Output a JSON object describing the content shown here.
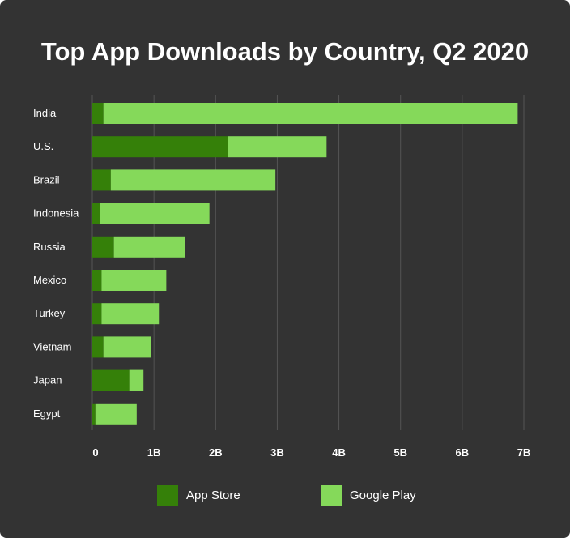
{
  "colors": {
    "background": "#333333",
    "grid": "#555555",
    "text": "#ffffff",
    "app_store": "#358009",
    "google_play": "#85d95a"
  },
  "chart_data": {
    "type": "bar",
    "orientation": "horizontal",
    "stacked": true,
    "title": "Top App Downloads by Country, Q2 2020",
    "xlabel": "",
    "ylabel": "",
    "categories": [
      "India",
      "U.S.",
      "Brazil",
      "Indonesia",
      "Russia",
      "Mexico",
      "Turkey",
      "Vietnam",
      "Japan",
      "Egypt"
    ],
    "series": [
      {
        "name": "App Store",
        "color": "#358009",
        "values": [
          0.18,
          2.2,
          0.3,
          0.12,
          0.35,
          0.15,
          0.15,
          0.18,
          0.6,
          0.05
        ]
      },
      {
        "name": "Google Play",
        "color": "#85d95a",
        "values": [
          6.72,
          1.6,
          2.67,
          1.78,
          1.15,
          1.05,
          0.93,
          0.77,
          0.23,
          0.67
        ]
      }
    ],
    "xlim": [
      0,
      7
    ],
    "x_ticks": [
      0,
      1,
      2,
      3,
      4,
      5,
      6,
      7
    ],
    "x_tick_labels": [
      "0",
      "1B",
      "2B",
      "3B",
      "4B",
      "5B",
      "6B",
      "7B"
    ],
    "grid": "vertical",
    "legend_position": "bottom"
  }
}
